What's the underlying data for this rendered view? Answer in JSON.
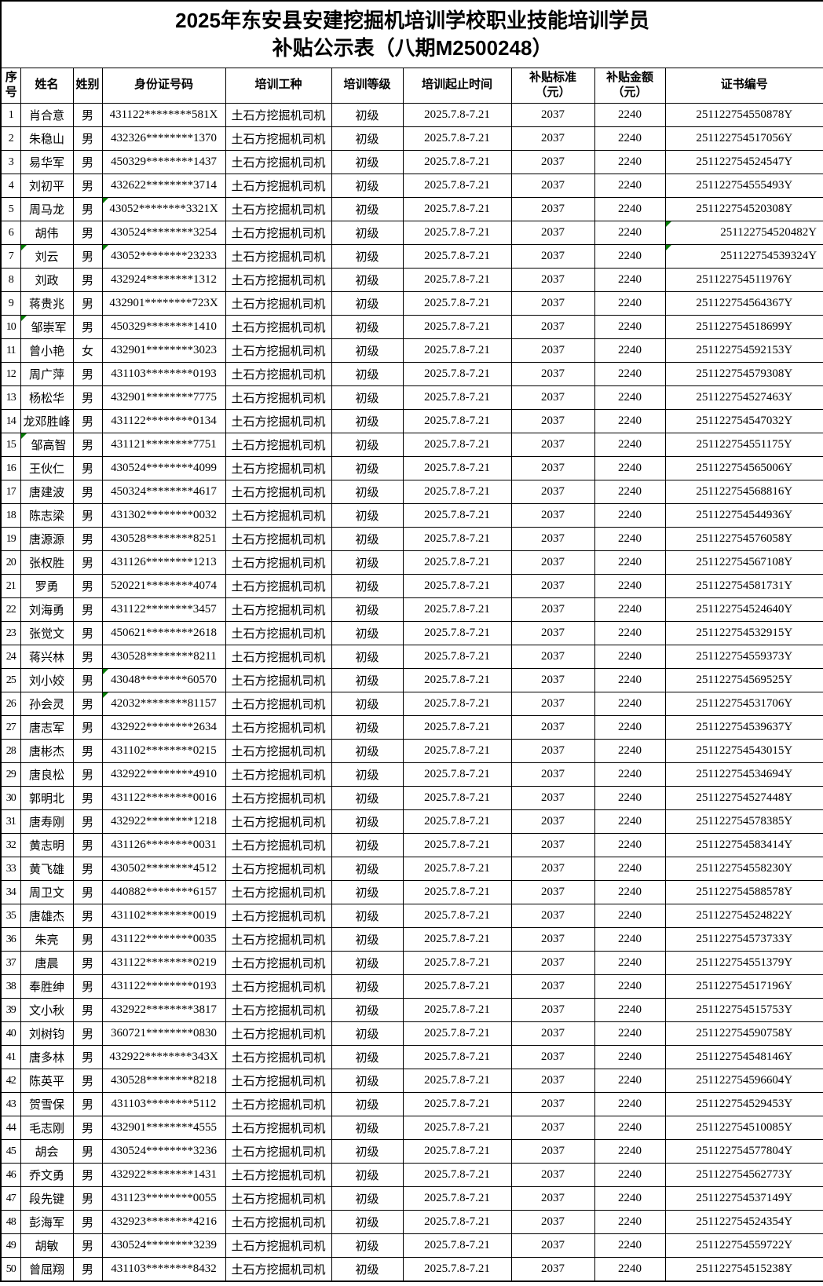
{
  "title": {
    "line1": "2025年东安县安建挖掘机培训学校职业技能培训学员",
    "line2": "补贴公示表（八期M2500248）"
  },
  "columns": [
    "序号",
    "姓名",
    "姓别",
    "身份证号码",
    "培训工种",
    "培训等级",
    "培训起止时间",
    "补贴标准\n（元）",
    "补贴金额\n（元）",
    "证书编号"
  ],
  "rows": [
    {
      "seq": "1",
      "name": "肖合意",
      "gender": "男",
      "id": "431122********581X",
      "trade": "土石方挖掘机司机",
      "level": "初级",
      "period": "2025.7.8-7.21",
      "standard": "2037",
      "amount": "2240",
      "cert": "251122754550878Y"
    },
    {
      "seq": "2",
      "name": "朱稳山",
      "gender": "男",
      "id": "432326********1370",
      "trade": "土石方挖掘机司机",
      "level": "初级",
      "period": "2025.7.8-7.21",
      "standard": "2037",
      "amount": "2240",
      "cert": "251122754517056Y"
    },
    {
      "seq": "3",
      "name": "易华军",
      "gender": "男",
      "id": "450329********1437",
      "trade": "土石方挖掘机司机",
      "level": "初级",
      "period": "2025.7.8-7.21",
      "standard": "2037",
      "amount": "2240",
      "cert": "251122754524547Y"
    },
    {
      "seq": "4",
      "name": "刘初平",
      "gender": "男",
      "id": "432622********3714",
      "trade": "土石方挖掘机司机",
      "level": "初级",
      "period": "2025.7.8-7.21",
      "standard": "2037",
      "amount": "2240",
      "cert": "251122754555493Y"
    },
    {
      "seq": "5",
      "name": "周马龙",
      "gender": "男",
      "id": "43052********3321X",
      "trade": "土石方挖掘机司机",
      "level": "初级",
      "period": "2025.7.8-7.21",
      "standard": "2037",
      "amount": "2240",
      "cert": "251122754520308Y",
      "green": [
        "id"
      ]
    },
    {
      "seq": "6",
      "name": "胡伟",
      "gender": "男",
      "id": "430524********3254",
      "trade": "土石方挖掘机司机",
      "level": "初级",
      "period": "2025.7.8-7.21",
      "standard": "2037",
      "amount": "2240",
      "cert": "251122754520482Y",
      "green": [
        "cert"
      ],
      "right": [
        "cert"
      ]
    },
    {
      "seq": "7",
      "name": "刘云",
      "gender": "男",
      "id": "43052********23233",
      "trade": "土石方挖掘机司机",
      "level": "初级",
      "period": "2025.7.8-7.21",
      "standard": "2037",
      "amount": "2240",
      "cert": "251122754539324Y",
      "green": [
        "name",
        "id",
        "cert"
      ],
      "right": [
        "cert"
      ]
    },
    {
      "seq": "8",
      "name": "刘政",
      "gender": "男",
      "id": "432924********1312",
      "trade": "土石方挖掘机司机",
      "level": "初级",
      "period": "2025.7.8-7.21",
      "standard": "2037",
      "amount": "2240",
      "cert": "251122754511976Y"
    },
    {
      "seq": "9",
      "name": "蒋贵兆",
      "gender": "男",
      "id": "432901********723X",
      "trade": "土石方挖掘机司机",
      "level": "初级",
      "period": "2025.7.8-7.21",
      "standard": "2037",
      "amount": "2240",
      "cert": "251122754564367Y"
    },
    {
      "seq": "10",
      "name": "邹崇军",
      "gender": "男",
      "id": "450329********1410",
      "trade": "土石方挖掘机司机",
      "level": "初级",
      "period": "2025.7.8-7.21",
      "standard": "2037",
      "amount": "2240",
      "cert": "251122754518699Y",
      "green": [
        "name"
      ],
      "right": [
        "name"
      ]
    },
    {
      "seq": "11",
      "name": "曾小艳",
      "gender": "女",
      "id": "432901********3023",
      "trade": "土石方挖掘机司机",
      "level": "初级",
      "period": "2025.7.8-7.21",
      "standard": "2037",
      "amount": "2240",
      "cert": "251122754592153Y"
    },
    {
      "seq": "12",
      "name": "周广萍",
      "gender": "男",
      "id": "431103********0193",
      "trade": "土石方挖掘机司机",
      "level": "初级",
      "period": "2025.7.8-7.21",
      "standard": "2037",
      "amount": "2240",
      "cert": "251122754579308Y"
    },
    {
      "seq": "13",
      "name": "杨松华",
      "gender": "男",
      "id": "432901********7775",
      "trade": "土石方挖掘机司机",
      "level": "初级",
      "period": "2025.7.8-7.21",
      "standard": "2037",
      "amount": "2240",
      "cert": "251122754527463Y"
    },
    {
      "seq": "14",
      "name": "龙邓胜峰",
      "gender": "男",
      "id": "431122********0134",
      "trade": "土石方挖掘机司机",
      "level": "初级",
      "period": "2025.7.8-7.21",
      "standard": "2037",
      "amount": "2240",
      "cert": "251122754547032Y"
    },
    {
      "seq": "15",
      "name": "邹高智",
      "gender": "男",
      "id": "431121********7751",
      "trade": "土石方挖掘机司机",
      "level": "初级",
      "period": "2025.7.8-7.21",
      "standard": "2037",
      "amount": "2240",
      "cert": "251122754551175Y",
      "green": [
        "name"
      ],
      "right": [
        "name"
      ]
    },
    {
      "seq": "16",
      "name": "王伙仁",
      "gender": "男",
      "id": "430524********4099",
      "trade": "土石方挖掘机司机",
      "level": "初级",
      "period": "2025.7.8-7.21",
      "standard": "2037",
      "amount": "2240",
      "cert": "251122754565006Y"
    },
    {
      "seq": "17",
      "name": "唐建波",
      "gender": "男",
      "id": "450324********4617",
      "trade": "土石方挖掘机司机",
      "level": "初级",
      "period": "2025.7.8-7.21",
      "standard": "2037",
      "amount": "2240",
      "cert": "251122754568816Y"
    },
    {
      "seq": "18",
      "name": "陈志梁",
      "gender": "男",
      "id": "431302********0032",
      "trade": "土石方挖掘机司机",
      "level": "初级",
      "period": "2025.7.8-7.21",
      "standard": "2037",
      "amount": "2240",
      "cert": "251122754544936Y"
    },
    {
      "seq": "19",
      "name": "唐源源",
      "gender": "男",
      "id": "430528********8251",
      "trade": "土石方挖掘机司机",
      "level": "初级",
      "period": "2025.7.8-7.21",
      "standard": "2037",
      "amount": "2240",
      "cert": "251122754576058Y"
    },
    {
      "seq": "20",
      "name": "张权胜",
      "gender": "男",
      "id": "431126********1213",
      "trade": "土石方挖掘机司机",
      "level": "初级",
      "period": "2025.7.8-7.21",
      "standard": "2037",
      "amount": "2240",
      "cert": "251122754567108Y"
    },
    {
      "seq": "21",
      "name": "罗勇",
      "gender": "男",
      "id": "520221********4074",
      "trade": "土石方挖掘机司机",
      "level": "初级",
      "period": "2025.7.8-7.21",
      "standard": "2037",
      "amount": "2240",
      "cert": "251122754581731Y"
    },
    {
      "seq": "22",
      "name": "刘海勇",
      "gender": "男",
      "id": "431122********3457",
      "trade": "土石方挖掘机司机",
      "level": "初级",
      "period": "2025.7.8-7.21",
      "standard": "2037",
      "amount": "2240",
      "cert": "251122754524640Y"
    },
    {
      "seq": "23",
      "name": "张觉文",
      "gender": "男",
      "id": "450621********2618",
      "trade": "土石方挖掘机司机",
      "level": "初级",
      "period": "2025.7.8-7.21",
      "standard": "2037",
      "amount": "2240",
      "cert": "251122754532915Y"
    },
    {
      "seq": "24",
      "name": "蒋兴林",
      "gender": "男",
      "id": "430528********8211",
      "trade": "土石方挖掘机司机",
      "level": "初级",
      "period": "2025.7.8-7.21",
      "standard": "2037",
      "amount": "2240",
      "cert": "251122754559373Y"
    },
    {
      "seq": "25",
      "name": "刘小姣",
      "gender": "男",
      "id": "43048********60570",
      "trade": "土石方挖掘机司机",
      "level": "初级",
      "period": "2025.7.8-7.21",
      "standard": "2037",
      "amount": "2240",
      "cert": "251122754569525Y",
      "green": [
        "id"
      ]
    },
    {
      "seq": "26",
      "name": "孙会灵",
      "gender": "男",
      "id": "42032********81157",
      "trade": "土石方挖掘机司机",
      "level": "初级",
      "period": "2025.7.8-7.21",
      "standard": "2037",
      "amount": "2240",
      "cert": "251122754531706Y",
      "green": [
        "id"
      ]
    },
    {
      "seq": "27",
      "name": "唐志军",
      "gender": "男",
      "id": "432922********2634",
      "trade": "土石方挖掘机司机",
      "level": "初级",
      "period": "2025.7.8-7.21",
      "standard": "2037",
      "amount": "2240",
      "cert": "251122754539637Y"
    },
    {
      "seq": "28",
      "name": "唐彬杰",
      "gender": "男",
      "id": "431102********0215",
      "trade": "土石方挖掘机司机",
      "level": "初级",
      "period": "2025.7.8-7.21",
      "standard": "2037",
      "amount": "2240",
      "cert": "251122754543015Y"
    },
    {
      "seq": "29",
      "name": "唐良松",
      "gender": "男",
      "id": "432922********4910",
      "trade": "土石方挖掘机司机",
      "level": "初级",
      "period": "2025.7.8-7.21",
      "standard": "2037",
      "amount": "2240",
      "cert": "251122754534694Y"
    },
    {
      "seq": "30",
      "name": "郭明北",
      "gender": "男",
      "id": "431122********0016",
      "trade": "土石方挖掘机司机",
      "level": "初级",
      "period": "2025.7.8-7.21",
      "standard": "2037",
      "amount": "2240",
      "cert": "251122754527448Y"
    },
    {
      "seq": "31",
      "name": "唐寿刚",
      "gender": "男",
      "id": "432922********1218",
      "trade": "土石方挖掘机司机",
      "level": "初级",
      "period": "2025.7.8-7.21",
      "standard": "2037",
      "amount": "2240",
      "cert": "251122754578385Y"
    },
    {
      "seq": "32",
      "name": "黄志明",
      "gender": "男",
      "id": "431126********0031",
      "trade": "土石方挖掘机司机",
      "level": "初级",
      "period": "2025.7.8-7.21",
      "standard": "2037",
      "amount": "2240",
      "cert": "251122754583414Y"
    },
    {
      "seq": "33",
      "name": "黄飞雄",
      "gender": "男",
      "id": "430502********4512",
      "trade": "土石方挖掘机司机",
      "level": "初级",
      "period": "2025.7.8-7.21",
      "standard": "2037",
      "amount": "2240",
      "cert": "251122754558230Y"
    },
    {
      "seq": "34",
      "name": "周卫文",
      "gender": "男",
      "id": "440882********6157",
      "trade": "土石方挖掘机司机",
      "level": "初级",
      "period": "2025.7.8-7.21",
      "standard": "2037",
      "amount": "2240",
      "cert": "251122754588578Y"
    },
    {
      "seq": "35",
      "name": "唐雄杰",
      "gender": "男",
      "id": "431102********0019",
      "trade": "土石方挖掘机司机",
      "level": "初级",
      "period": "2025.7.8-7.21",
      "standard": "2037",
      "amount": "2240",
      "cert": "251122754524822Y"
    },
    {
      "seq": "36",
      "name": "朱亮",
      "gender": "男",
      "id": "431122********0035",
      "trade": "土石方挖掘机司机",
      "level": "初级",
      "period": "2025.7.8-7.21",
      "standard": "2037",
      "amount": "2240",
      "cert": "251122754573733Y"
    },
    {
      "seq": "37",
      "name": "唐晨",
      "gender": "男",
      "id": "431122********0219",
      "trade": "土石方挖掘机司机",
      "level": "初级",
      "period": "2025.7.8-7.21",
      "standard": "2037",
      "amount": "2240",
      "cert": "251122754551379Y"
    },
    {
      "seq": "38",
      "name": "奉胜绅",
      "gender": "男",
      "id": "431122********0193",
      "trade": "土石方挖掘机司机",
      "level": "初级",
      "period": "2025.7.8-7.21",
      "standard": "2037",
      "amount": "2240",
      "cert": "251122754517196Y"
    },
    {
      "seq": "39",
      "name": "文小秋",
      "gender": "男",
      "id": "432922********3817",
      "trade": "土石方挖掘机司机",
      "level": "初级",
      "period": "2025.7.8-7.21",
      "standard": "2037",
      "amount": "2240",
      "cert": "251122754515753Y"
    },
    {
      "seq": "40",
      "name": "刘树钧",
      "gender": "男",
      "id": "360721********0830",
      "trade": "土石方挖掘机司机",
      "level": "初级",
      "period": "2025.7.8-7.21",
      "standard": "2037",
      "amount": "2240",
      "cert": "251122754590758Y"
    },
    {
      "seq": "41",
      "name": "唐多林",
      "gender": "男",
      "id": "432922********343X",
      "trade": "土石方挖掘机司机",
      "level": "初级",
      "period": "2025.7.8-7.21",
      "standard": "2037",
      "amount": "2240",
      "cert": "251122754548146Y"
    },
    {
      "seq": "42",
      "name": "陈英平",
      "gender": "男",
      "id": "430528********8218",
      "trade": "土石方挖掘机司机",
      "level": "初级",
      "period": "2025.7.8-7.21",
      "standard": "2037",
      "amount": "2240",
      "cert": "251122754596604Y"
    },
    {
      "seq": "43",
      "name": "贺雪保",
      "gender": "男",
      "id": "431103********5112",
      "trade": "土石方挖掘机司机",
      "level": "初级",
      "period": "2025.7.8-7.21",
      "standard": "2037",
      "amount": "2240",
      "cert": "251122754529453Y"
    },
    {
      "seq": "44",
      "name": "毛志刚",
      "gender": "男",
      "id": "432901********4555",
      "trade": "土石方挖掘机司机",
      "level": "初级",
      "period": "2025.7.8-7.21",
      "standard": "2037",
      "amount": "2240",
      "cert": "251122754510085Y"
    },
    {
      "seq": "45",
      "name": "胡会",
      "gender": "男",
      "id": "430524********3236",
      "trade": "土石方挖掘机司机",
      "level": "初级",
      "period": "2025.7.8-7.21",
      "standard": "2037",
      "amount": "2240",
      "cert": "251122754577804Y"
    },
    {
      "seq": "46",
      "name": "乔文勇",
      "gender": "男",
      "id": "432922********1431",
      "trade": "土石方挖掘机司机",
      "level": "初级",
      "period": "2025.7.8-7.21",
      "standard": "2037",
      "amount": "2240",
      "cert": "251122754562773Y"
    },
    {
      "seq": "47",
      "name": "段先键",
      "gender": "男",
      "id": "431123********0055",
      "trade": "土石方挖掘机司机",
      "level": "初级",
      "period": "2025.7.8-7.21",
      "standard": "2037",
      "amount": "2240",
      "cert": "251122754537149Y"
    },
    {
      "seq": "48",
      "name": "彭海军",
      "gender": "男",
      "id": "432923********4216",
      "trade": "土石方挖掘机司机",
      "level": "初级",
      "period": "2025.7.8-7.21",
      "standard": "2037",
      "amount": "2240",
      "cert": "251122754524354Y"
    },
    {
      "seq": "49",
      "name": "胡敏",
      "gender": "男",
      "id": "430524********3239",
      "trade": "土石方挖掘机司机",
      "level": "初级",
      "period": "2025.7.8-7.21",
      "standard": "2037",
      "amount": "2240",
      "cert": "251122754559722Y"
    },
    {
      "seq": "50",
      "name": "曾屈翔",
      "gender": "男",
      "id": "431103********8432",
      "trade": "土石方挖掘机司机",
      "level": "初级",
      "period": "2025.7.8-7.21",
      "standard": "2037",
      "amount": "2240",
      "cert": "251122754515238Y"
    }
  ]
}
